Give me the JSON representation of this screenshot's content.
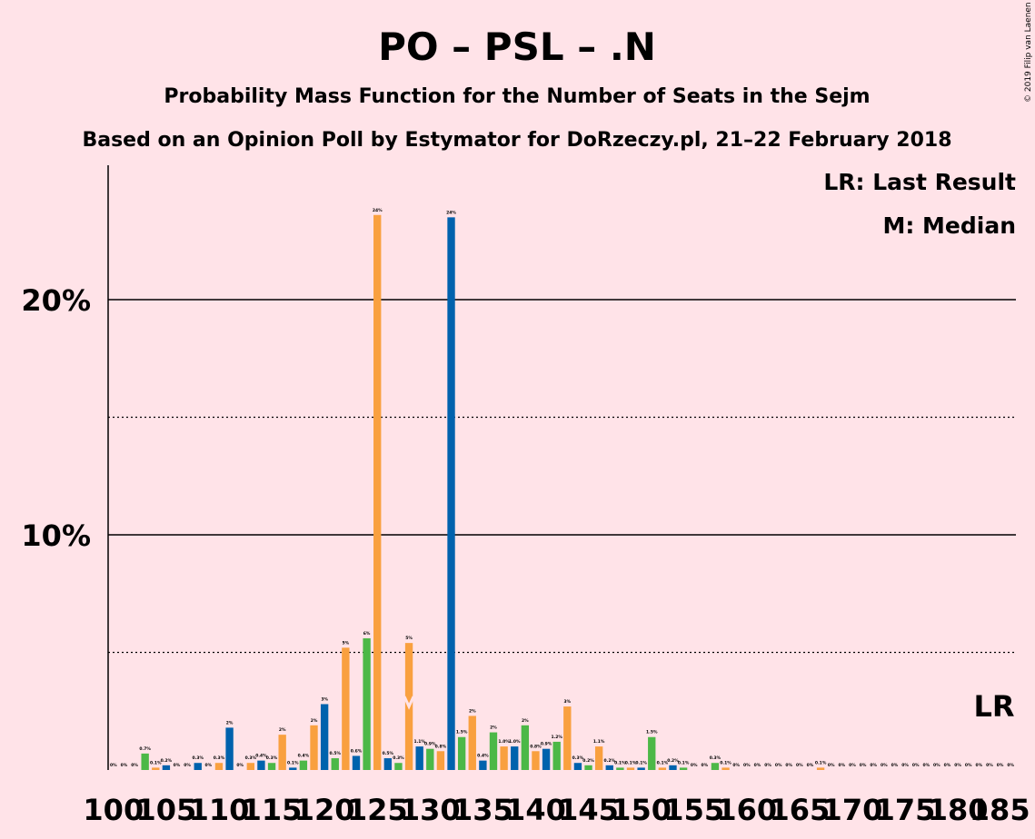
{
  "copyright": "© 2019 Filip van Laenen",
  "chart_data": {
    "type": "bar",
    "title": "PO – PSL – .N",
    "subtitle": "Probability Mass Function for the Number of Seats in the Sejm",
    "subtitle2": "Based on an Opinion Poll by Estymator for DoRzeczy.pl, 21–22 February 2018",
    "legend": [
      "LR: Last Result",
      "M: Median"
    ],
    "lr_label": "LR",
    "median_seat": 128,
    "last_result_seat": 183,
    "x_ticks": [
      100,
      105,
      110,
      115,
      120,
      125,
      130,
      135,
      140,
      145,
      150,
      155,
      160,
      165,
      170,
      175,
      180,
      185
    ],
    "y_ticks": [
      {
        "value": 10,
        "label": "10%"
      },
      {
        "value": 20,
        "label": "20%"
      }
    ],
    "ylim": [
      0,
      25.7
    ],
    "xlim": [
      99.5,
      185.5
    ],
    "colors": [
      "#0062AD",
      "#4CB847",
      "#F9A03F"
    ],
    "bars": [
      {
        "seat": 100,
        "value": 0.0,
        "label": "0%"
      },
      {
        "seat": 101,
        "value": 0.0,
        "label": "0%"
      },
      {
        "seat": 102,
        "value": 0.0,
        "label": "0%"
      },
      {
        "seat": 103,
        "value": 0.7,
        "label": "0.7%"
      },
      {
        "seat": 104,
        "value": 0.1,
        "label": "0.1%"
      },
      {
        "seat": 105,
        "value": 0.2,
        "label": "0.2%"
      },
      {
        "seat": 106,
        "value": 0.0,
        "label": "0%"
      },
      {
        "seat": 107,
        "value": 0.0,
        "label": "0%"
      },
      {
        "seat": 108,
        "value": 0.3,
        "label": "0.3%"
      },
      {
        "seat": 109,
        "value": 0.0,
        "label": "0%"
      },
      {
        "seat": 110,
        "value": 0.3,
        "label": "0.3%"
      },
      {
        "seat": 111,
        "value": 1.8,
        "label": "2%"
      },
      {
        "seat": 112,
        "value": 0.0,
        "label": "0%"
      },
      {
        "seat": 113,
        "value": 0.3,
        "label": "0.3%"
      },
      {
        "seat": 114,
        "value": 0.4,
        "label": "0.4%"
      },
      {
        "seat": 115,
        "value": 0.3,
        "label": "0.3%"
      },
      {
        "seat": 116,
        "value": 1.5,
        "label": "2%"
      },
      {
        "seat": 117,
        "value": 0.1,
        "label": "0.1%"
      },
      {
        "seat": 118,
        "value": 0.4,
        "label": "0.4%"
      },
      {
        "seat": 119,
        "value": 1.9,
        "label": "2%"
      },
      {
        "seat": 120,
        "value": 2.8,
        "label": "3%"
      },
      {
        "seat": 121,
        "value": 0.5,
        "label": "0.5%"
      },
      {
        "seat": 122,
        "value": 5.2,
        "label": "5%"
      },
      {
        "seat": 123,
        "value": 0.6,
        "label": "0.6%"
      },
      {
        "seat": 124,
        "value": 5.6,
        "label": "6%"
      },
      {
        "seat": 125,
        "value": 23.6,
        "label": "24%"
      },
      {
        "seat": 126,
        "value": 0.5,
        "label": "0.5%"
      },
      {
        "seat": 127,
        "value": 0.3,
        "label": "0.3%"
      },
      {
        "seat": 128,
        "value": 5.4,
        "label": "5%"
      },
      {
        "seat": 129,
        "value": 1.0,
        "label": "1.1%"
      },
      {
        "seat": 130,
        "value": 0.9,
        "label": "0.9%"
      },
      {
        "seat": 131,
        "value": 0.8,
        "label": "0.8%"
      },
      {
        "seat": 132,
        "value": 23.5,
        "label": "24%"
      },
      {
        "seat": 133,
        "value": 1.4,
        "label": "1.5%"
      },
      {
        "seat": 134,
        "value": 2.3,
        "label": "2%"
      },
      {
        "seat": 135,
        "value": 0.4,
        "label": "0.4%"
      },
      {
        "seat": 136,
        "value": 1.6,
        "label": "2%"
      },
      {
        "seat": 137,
        "value": 1.0,
        "label": "1.0%"
      },
      {
        "seat": 138,
        "value": 1.0,
        "label": "1.0%"
      },
      {
        "seat": 139,
        "value": 1.9,
        "label": "2%"
      },
      {
        "seat": 140,
        "value": 0.8,
        "label": "0.8%"
      },
      {
        "seat": 141,
        "value": 0.9,
        "label": "0.9%"
      },
      {
        "seat": 142,
        "value": 1.2,
        "label": "1.2%"
      },
      {
        "seat": 143,
        "value": 2.7,
        "label": "3%"
      },
      {
        "seat": 144,
        "value": 0.3,
        "label": "0.3%"
      },
      {
        "seat": 145,
        "value": 0.2,
        "label": "0.2%"
      },
      {
        "seat": 146,
        "value": 1.0,
        "label": "1.1%"
      },
      {
        "seat": 147,
        "value": 0.2,
        "label": "0.2%"
      },
      {
        "seat": 148,
        "value": 0.1,
        "label": "0.1%"
      },
      {
        "seat": 149,
        "value": 0.1,
        "label": "0.1%"
      },
      {
        "seat": 150,
        "value": 0.1,
        "label": "0.1%"
      },
      {
        "seat": 151,
        "value": 1.4,
        "label": "1.5%"
      },
      {
        "seat": 152,
        "value": 0.1,
        "label": "0.1%"
      },
      {
        "seat": 153,
        "value": 0.2,
        "label": "0.2%"
      },
      {
        "seat": 154,
        "value": 0.1,
        "label": "0.1%"
      },
      {
        "seat": 155,
        "value": 0.0,
        "label": "0%"
      },
      {
        "seat": 156,
        "value": 0.0,
        "label": "0%"
      },
      {
        "seat": 157,
        "value": 0.3,
        "label": "0.3%"
      },
      {
        "seat": 158,
        "value": 0.1,
        "label": "0.1%"
      },
      {
        "seat": 159,
        "value": 0.0,
        "label": "0%"
      },
      {
        "seat": 160,
        "value": 0.0,
        "label": "0%"
      },
      {
        "seat": 161,
        "value": 0.0,
        "label": "0%"
      },
      {
        "seat": 162,
        "value": 0.0,
        "label": "0%"
      },
      {
        "seat": 163,
        "value": 0.0,
        "label": "0%"
      },
      {
        "seat": 164,
        "value": 0.0,
        "label": "0%"
      },
      {
        "seat": 165,
        "value": 0.0,
        "label": "0%"
      },
      {
        "seat": 166,
        "value": 0.0,
        "label": "0%"
      },
      {
        "seat": 167,
        "value": 0.1,
        "label": "0.1%"
      },
      {
        "seat": 168,
        "value": 0.0,
        "label": "0%"
      },
      {
        "seat": 169,
        "value": 0.0,
        "label": "0%"
      },
      {
        "seat": 170,
        "value": 0.0,
        "label": "0%"
      },
      {
        "seat": 171,
        "value": 0.0,
        "label": "0%"
      },
      {
        "seat": 172,
        "value": 0.0,
        "label": "0%"
      },
      {
        "seat": 173,
        "value": 0.0,
        "label": "0%"
      },
      {
        "seat": 174,
        "value": 0.0,
        "label": "0%"
      },
      {
        "seat": 175,
        "value": 0.0,
        "label": "0%"
      },
      {
        "seat": 176,
        "value": 0.0,
        "label": "0%"
      },
      {
        "seat": 177,
        "value": 0.0,
        "label": "0%"
      },
      {
        "seat": 178,
        "value": 0.0,
        "label": "0%"
      },
      {
        "seat": 179,
        "value": 0.0,
        "label": "0%"
      },
      {
        "seat": 180,
        "value": 0.0,
        "label": "0%"
      },
      {
        "seat": 181,
        "value": 0.0,
        "label": "0%"
      },
      {
        "seat": 182,
        "value": 0.0,
        "label": "0%"
      },
      {
        "seat": 183,
        "value": 0.0,
        "label": "0%"
      },
      {
        "seat": 184,
        "value": 0.0,
        "label": "0%"
      },
      {
        "seat": 185,
        "value": 0.0,
        "label": "0%"
      }
    ]
  }
}
